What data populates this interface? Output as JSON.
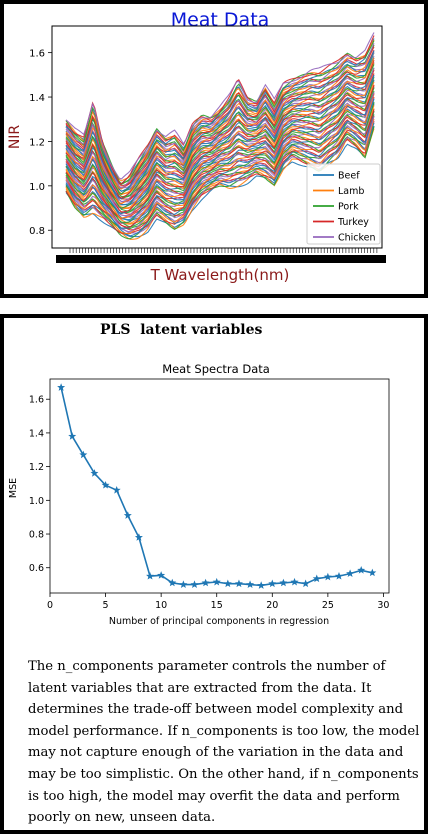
{
  "meat_panel": {
    "heading": "Meat Data"
  },
  "pls_panel": {
    "heading": "PLS  latent variables",
    "description": "The n_components parameter controls the number of latent variables that are extracted from the data. It determines the trade-off between model complexity and model performance. If n_components is too low, the model may not capture enough of the variation in the data and may be too simplistic. On the other hand, if n_components is too high, the model may overfit the data and perform poorly on new, unseen data."
  },
  "chart_data": [
    {
      "type": "line",
      "title": "Meat Data",
      "xlabel": "T Wavelength(nm)",
      "ylabel": "NIR",
      "ylim": [
        0.72,
        1.72
      ],
      "yticks": [
        0.8,
        1.0,
        1.2,
        1.4,
        1.6
      ],
      "grid": false,
      "legend_position": "lower-right",
      "series": [
        {
          "name": "Beef",
          "color": "#1f77b4"
        },
        {
          "name": "Lamb",
          "color": "#ff7f0e"
        },
        {
          "name": "Pork",
          "color": "#2ca02c"
        },
        {
          "name": "Turkey",
          "color": "#d62728"
        },
        {
          "name": "Chicken",
          "color": "#9467bd"
        }
      ],
      "spectrum_envelope": {
        "lower": [
          0.97,
          0.9,
          0.86,
          0.88,
          0.85,
          0.82,
          0.78,
          0.76,
          0.77,
          0.8,
          0.86,
          0.83,
          0.8,
          0.83,
          0.9,
          0.95,
          0.98,
          1.0,
          0.99,
          1.0,
          1.02,
          1.05,
          1.03,
          1.0,
          1.08,
          1.12,
          1.1,
          1.08,
          1.06,
          1.1,
          1.13,
          1.2,
          1.17,
          1.12,
          1.26
        ],
        "upper": [
          1.3,
          1.25,
          1.22,
          1.38,
          1.2,
          1.1,
          1.02,
          1.05,
          1.12,
          1.18,
          1.26,
          1.22,
          1.24,
          1.18,
          1.28,
          1.32,
          1.31,
          1.35,
          1.4,
          1.48,
          1.4,
          1.38,
          1.45,
          1.38,
          1.46,
          1.48,
          1.5,
          1.52,
          1.52,
          1.54,
          1.56,
          1.6,
          1.58,
          1.6,
          1.68
        ]
      }
    },
    {
      "type": "line",
      "title": "Meat Spectra Data",
      "xlabel": "Number of principal components in regression",
      "ylabel": "MSE",
      "xlim": [
        0,
        30.5
      ],
      "ylim": [
        0.45,
        1.72
      ],
      "xticks": [
        0,
        5,
        10,
        15,
        20,
        25,
        30
      ],
      "yticks": [
        0.6,
        0.8,
        1.0,
        1.2,
        1.4,
        1.6
      ],
      "series": [
        {
          "color": "#1f77b4",
          "marker": "star",
          "x": [
            1,
            2,
            3,
            4,
            5,
            6,
            7,
            8,
            9,
            10,
            11,
            12,
            13,
            14,
            15,
            16,
            17,
            18,
            19,
            20,
            21,
            22,
            23,
            24,
            25,
            26,
            27,
            28,
            29
          ],
          "y": [
            1.67,
            1.38,
            1.27,
            1.16,
            1.09,
            1.06,
            0.91,
            0.78,
            0.55,
            0.555,
            0.51,
            0.5,
            0.5,
            0.51,
            0.515,
            0.505,
            0.505,
            0.5,
            0.495,
            0.505,
            0.51,
            0.515,
            0.505,
            0.535,
            0.545,
            0.55,
            0.565,
            0.585,
            0.57
          ]
        }
      ]
    }
  ]
}
